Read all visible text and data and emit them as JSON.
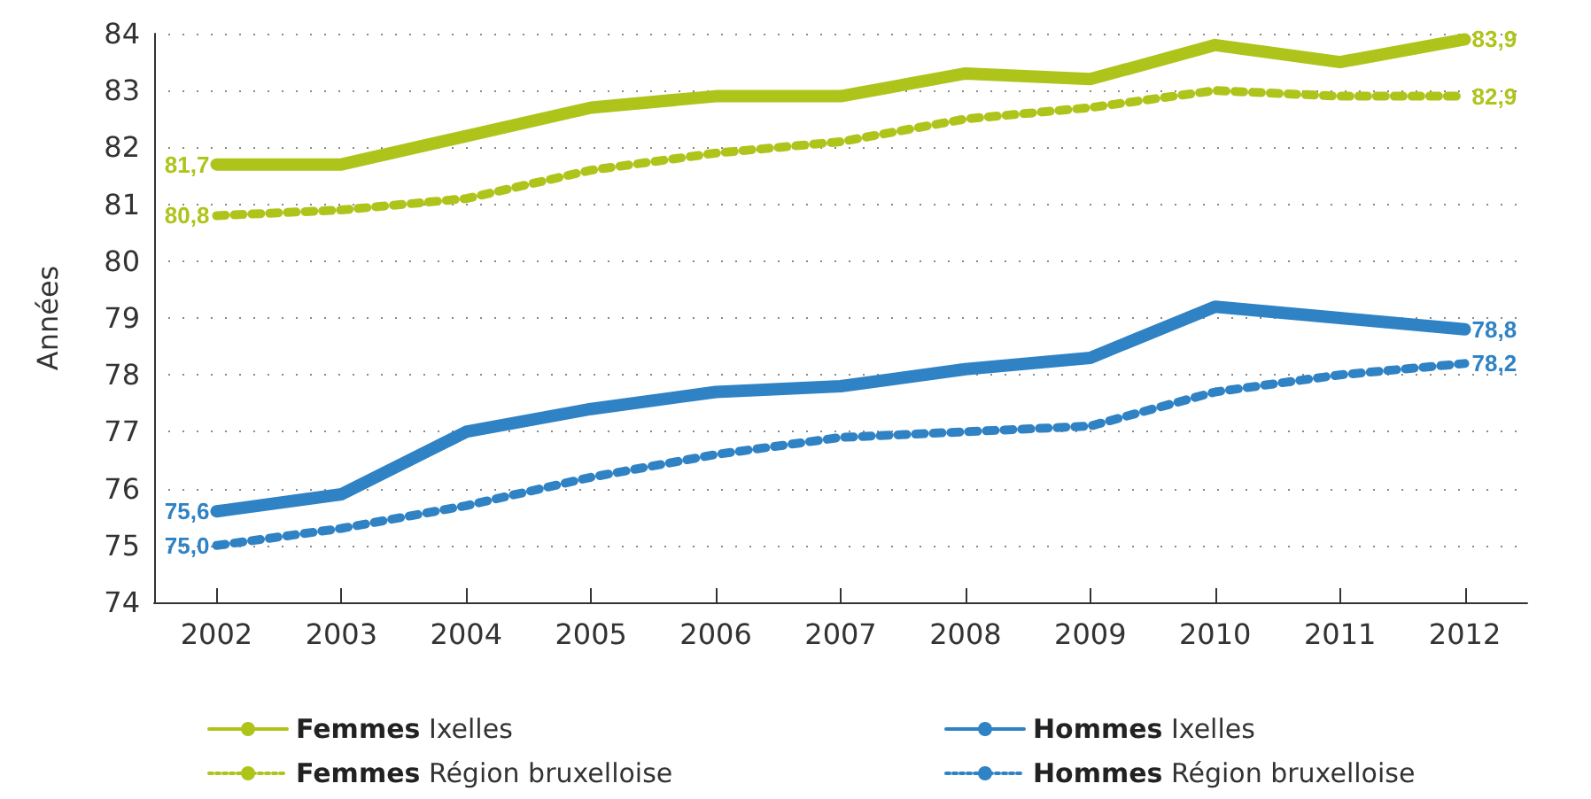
{
  "chart_data": {
    "type": "line",
    "ylabel": "Années",
    "categories": [
      "2002",
      "2003",
      "2004",
      "2005",
      "2006",
      "2007",
      "2008",
      "2009",
      "2010",
      "2011",
      "2012"
    ],
    "ylim": [
      74,
      84
    ],
    "yticks": [
      74,
      75,
      76,
      77,
      78,
      79,
      80,
      81,
      82,
      83,
      84
    ],
    "grid": "y",
    "legend": "bottom",
    "marker": "none",
    "series": [
      {
        "name": "Femmes Ixelles",
        "color": "#afc41b",
        "line_style": "solid",
        "values": [
          81.7,
          81.7,
          82.2,
          82.7,
          82.9,
          82.9,
          83.3,
          83.2,
          83.8,
          83.5,
          83.9
        ],
        "value_labels": [
          "81,7",
          null,
          null,
          null,
          null,
          null,
          null,
          null,
          null,
          null,
          "83,9"
        ]
      },
      {
        "name": "Femmes Région bruxelloise",
        "color": "#afc41b",
        "line_style": "dotted",
        "values": [
          80.8,
          80.9,
          81.1,
          81.6,
          81.9,
          82.1,
          82.5,
          82.7,
          83.0,
          82.9,
          82.9
        ],
        "value_labels": [
          "80,8",
          null,
          null,
          null,
          null,
          null,
          null,
          null,
          null,
          null,
          "82,9"
        ]
      },
      {
        "name": "Hommes Ixelles",
        "color": "#2f82c4",
        "line_style": "solid",
        "values": [
          75.6,
          75.9,
          77.0,
          77.4,
          77.7,
          77.8,
          78.1,
          78.3,
          79.2,
          79.0,
          78.8
        ],
        "value_labels": [
          "75,6",
          null,
          null,
          null,
          null,
          null,
          null,
          null,
          null,
          null,
          "78,8"
        ]
      },
      {
        "name": "Hommes Région bruxelloise",
        "color": "#2f82c4",
        "line_style": "dotted",
        "values": [
          75.0,
          75.3,
          75.7,
          76.2,
          76.6,
          76.9,
          77.0,
          77.1,
          77.7,
          78.0,
          78.2
        ],
        "value_labels": [
          "75,0",
          null,
          null,
          null,
          null,
          null,
          null,
          null,
          null,
          null,
          "78,2"
        ]
      }
    ]
  }
}
